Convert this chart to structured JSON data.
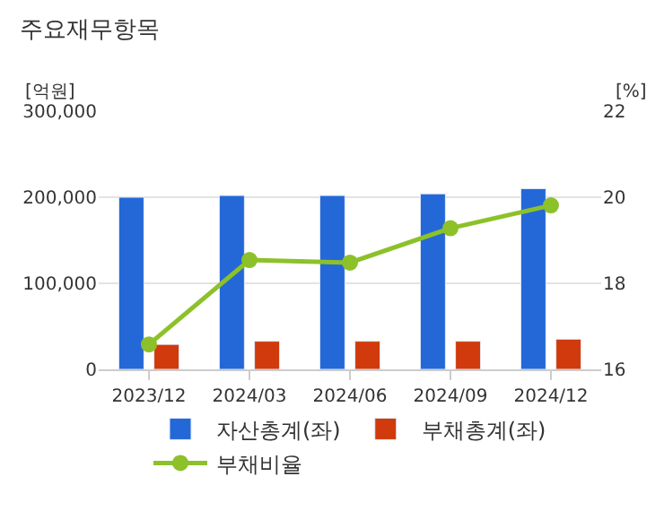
{
  "chart_data": {
    "type": "bar",
    "title": "주요재무항목",
    "ylabel": "[억원]",
    "y2label": "[%]",
    "categories": [
      "2023/12",
      "2024/03",
      "2024/06",
      "2024/09",
      "2024/12"
    ],
    "series": [
      {
        "name": "자산총계(좌)",
        "color": "#2468d8",
        "values": [
          200000,
          202000,
          202000,
          204000,
          210000
        ]
      },
      {
        "name": "부채총계(좌)",
        "color": "#d03a0c",
        "values": [
          29000,
          32700,
          32700,
          32700,
          35100
        ]
      },
      {
        "name": "부채비율",
        "type": "line",
        "axis": "y2",
        "color": "#8cc12a",
        "values": [
          16.58,
          18.54,
          18.48,
          19.28,
          19.81
        ]
      }
    ],
    "ylim": [
      0,
      300000
    ],
    "yticks": [
      0,
      {
        "value": 100000,
        "label": "100,000"
      },
      {
        "value": 200000,
        "label": "200,000"
      },
      {
        "value": 300000,
        "label": "300,000"
      }
    ],
    "y2lim": [
      16,
      22
    ],
    "y2ticks": [
      16,
      18,
      20,
      22
    ],
    "grid": "y",
    "legend": "bottom",
    "marker": "circle"
  }
}
